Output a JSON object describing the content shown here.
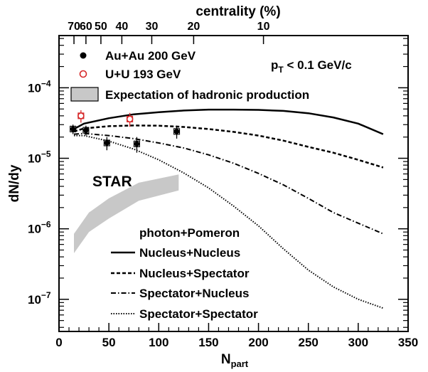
{
  "chart_data": {
    "type": "line",
    "title": "",
    "xlabel": "N",
    "xlabel_sub": "part",
    "ylabel": "dN/dy",
    "x_range": [
      0,
      350
    ],
    "y_range": [
      3.5e-08,
      0.00055
    ],
    "y_scale": "log",
    "x_ticks": [
      "0",
      "50",
      "100",
      "150",
      "200",
      "250",
      "300",
      "350"
    ],
    "y_ticks": [
      {
        "base": "10",
        "exp": "−4",
        "value": 0.0001
      },
      {
        "base": "10",
        "exp": "−5",
        "value": 1e-05
      },
      {
        "base": "10",
        "exp": "−6",
        "value": 1e-06
      },
      {
        "base": "10",
        "exp": "−7",
        "value": 1e-07
      }
    ],
    "top_axis": {
      "label": "centrality (%)",
      "ticks": [
        {
          "label": "70",
          "npart": 15
        },
        {
          "label": "60",
          "npart": 27
        },
        {
          "label": "50",
          "npart": 42
        },
        {
          "label": "40",
          "npart": 63
        },
        {
          "label": "30",
          "npart": 93
        },
        {
          "label": "20",
          "npart": 135
        },
        {
          "label": "10",
          "npart": 205
        }
      ]
    },
    "annotations": {
      "star": "STAR",
      "pt_cut": {
        "prefix": "p",
        "sub": "T",
        "rest": " < 0.1 GeV/c"
      }
    },
    "legend_top": [
      {
        "label": "Au+Au 200 GeV",
        "marker": "filled-circle",
        "color": "#000000"
      },
      {
        "label": "U+U 193 GeV",
        "marker": "open-circle",
        "color": "#d62728"
      },
      {
        "label": "Expectation of hadronic production",
        "marker": "gray-box",
        "color": "#c8c8c8"
      }
    ],
    "legend_bottom_title": "photon+Pomeron",
    "points": [
      {
        "name": "Au+Au 200 GeV",
        "color": "#000000",
        "data": [
          {
            "x": 14,
            "y": 2.6e-05,
            "err": 4e-06
          },
          {
            "x": 27,
            "y": 2.5e-05,
            "err": 4e-06
          },
          {
            "x": 48,
            "y": 1.65e-05,
            "err": 3.5e-06
          },
          {
            "x": 78,
            "y": 1.6e-05,
            "err": 4e-06
          },
          {
            "x": 118,
            "y": 2.4e-05,
            "err": 5e-06
          }
        ]
      },
      {
        "name": "U+U 193 GeV",
        "color": "#d62728",
        "data": [
          {
            "x": 22,
            "y": 4e-05,
            "err": 8e-06
          },
          {
            "x": 71,
            "y": 3.6e-05,
            "err": 8e-06
          }
        ]
      }
    ],
    "hadronic_band": {
      "x": [
        15,
        30,
        50,
        80,
        120
      ],
      "y_low": [
        4.5e-07,
        9e-07,
        1.4e-06,
        2.5e-06,
        3.5e-06
      ],
      "y_high": [
        8.5e-07,
        1.7e-06,
        2.7e-06,
        4.5e-06,
        5.9e-06
      ]
    },
    "series": [
      {
        "name": "Nucleus+Nucleus",
        "dash": "solid",
        "x": [
          15,
          25,
          50,
          75,
          100,
          125,
          150,
          175,
          200,
          225,
          250,
          275,
          300,
          325
        ],
        "y": [
          2.6e-05,
          3.1e-05,
          3.7e-05,
          4.2e-05,
          4.5e-05,
          4.75e-05,
          4.9e-05,
          4.9e-05,
          4.85e-05,
          4.7e-05,
          4.35e-05,
          3.8e-05,
          3.1e-05,
          2.2e-05
        ]
      },
      {
        "name": "Nucleus+Spectator",
        "dash": "dashed",
        "x": [
          15,
          25,
          50,
          75,
          100,
          125,
          150,
          175,
          200,
          225,
          250,
          275,
          300,
          325
        ],
        "y": [
          2.4e-05,
          2.65e-05,
          2.85e-05,
          2.92e-05,
          2.9e-05,
          2.78e-05,
          2.6e-05,
          2.37e-05,
          2.1e-05,
          1.78e-05,
          1.45e-05,
          1.2e-05,
          9.5e-06,
          7.4e-06
        ]
      },
      {
        "name": "Spectator+Nucleus",
        "dash": "dashdot",
        "x": [
          15,
          25,
          50,
          75,
          100,
          125,
          150,
          175,
          200,
          225,
          250,
          275,
          300,
          325
        ],
        "y": [
          2.2e-05,
          2.25e-05,
          2.1e-05,
          1.9e-05,
          1.65e-05,
          1.4e-05,
          1.12e-05,
          8.5e-06,
          6.1e-06,
          4.2e-06,
          2.7e-06,
          1.7e-06,
          1.2e-06,
          8.5e-07
        ]
      },
      {
        "name": "Spectator+Spectator",
        "dash": "dotted",
        "x": [
          15,
          25,
          50,
          75,
          100,
          125,
          150,
          175,
          200,
          225,
          250,
          275,
          300,
          325
        ],
        "y": [
          2.1e-05,
          2.1e-05,
          1.75e-05,
          1.35e-05,
          9.5e-06,
          6.2e-06,
          3.8e-06,
          2.1e-06,
          1.1e-06,
          5.2e-07,
          2.6e-07,
          1.5e-07,
          1e-07,
          7.5e-08
        ]
      }
    ]
  }
}
